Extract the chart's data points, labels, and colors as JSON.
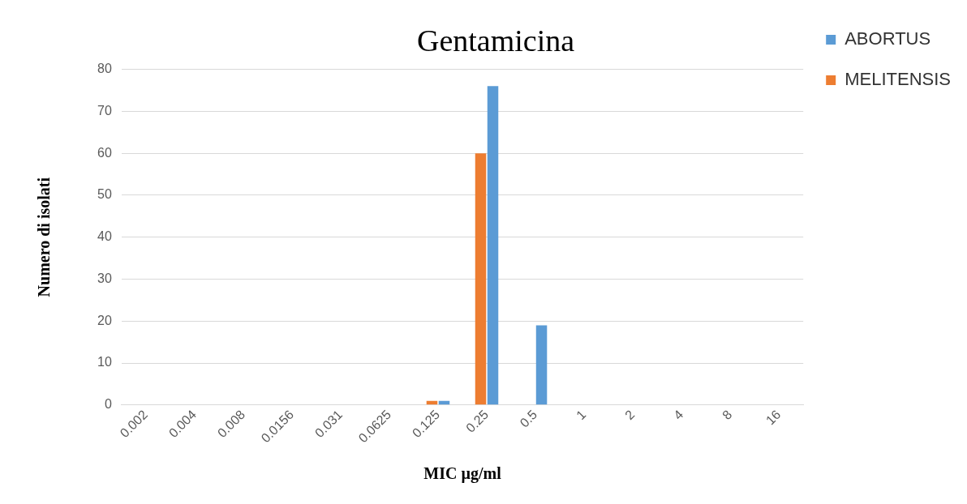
{
  "chart_data": {
    "type": "bar",
    "title": "Gentamicina",
    "xlabel": "MIC µg/ml",
    "ylabel": "Numero di isolati",
    "categories": [
      "0.002",
      "0.004",
      "0.008",
      "0.0156",
      "0.031",
      "0.0625",
      "0.125",
      "0.25",
      "0.5",
      "1",
      "2",
      "4",
      "8",
      "16"
    ],
    "series": [
      {
        "name": "MELITENSIS",
        "color": "#ed7d31",
        "values": [
          0,
          0,
          0,
          0,
          0,
          0,
          1,
          60,
          0,
          0,
          0,
          0,
          0,
          0
        ]
      },
      {
        "name": "ABORTUS",
        "color": "#5b9bd5",
        "values": [
          0,
          0,
          0,
          0,
          0,
          0,
          1,
          76,
          19,
          0,
          0,
          0,
          0,
          0
        ]
      }
    ],
    "ylim": [
      0,
      80
    ],
    "yticks": [
      0,
      10,
      20,
      30,
      40,
      50,
      60,
      70,
      80
    ],
    "grid": "y",
    "legend": "top right"
  }
}
